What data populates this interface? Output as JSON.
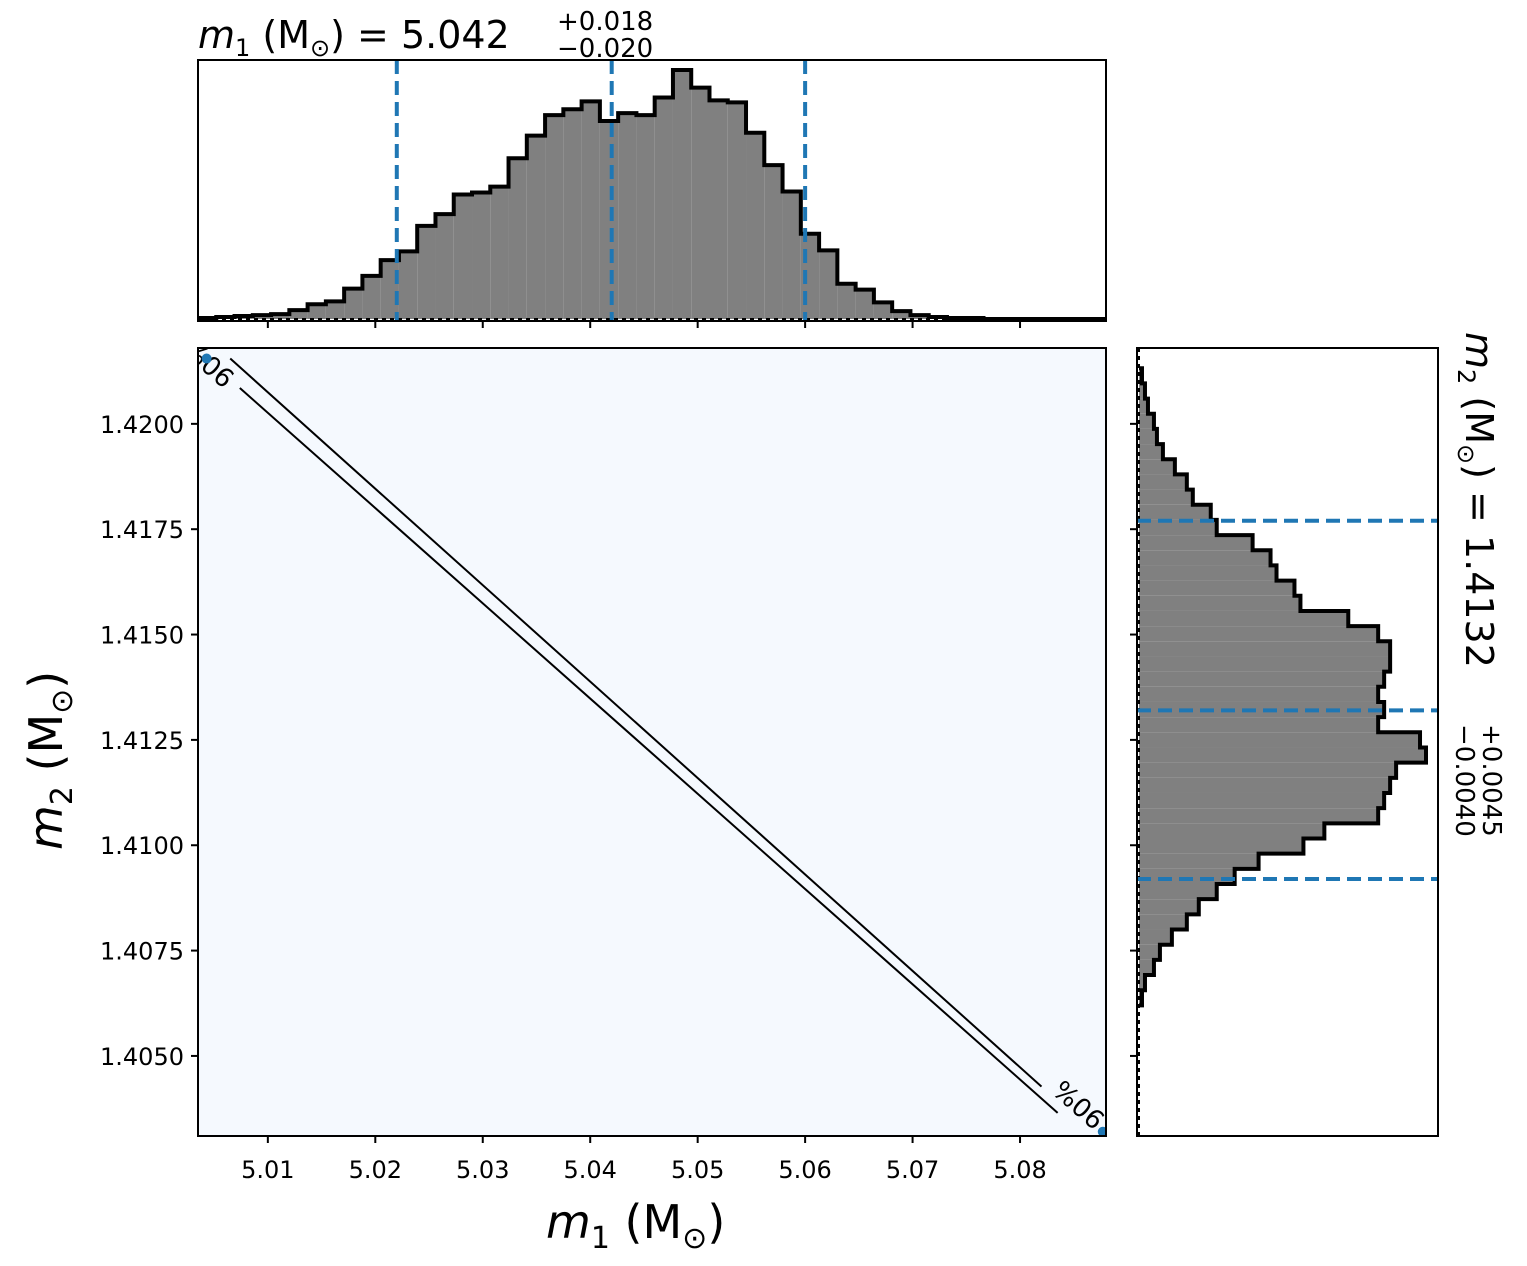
{
  "labels": {
    "top_title": {
      "sym": "m",
      "sub": "1",
      "unit_l": " (M",
      "sun": "⊙",
      "unit_r": ")",
      "eq": " = 5.042",
      "sup": "+0.018",
      "inf": "−0.020"
    },
    "right_title": {
      "sym": "m",
      "sub": "2",
      "unit_l": " (M",
      "sun": "⊙",
      "unit_r": ")",
      "eq": " = 1.4132",
      "sup": "+0.0045",
      "inf": "−0.0040"
    },
    "xlabel": {
      "sym": "m",
      "sub": "1",
      "unit_l": " (M",
      "sun": "⊙",
      "unit_r": ")"
    },
    "ylabel": {
      "sym": "m",
      "sub": "2",
      "unit_l": " (M",
      "sun": "⊙",
      "unit_r": ")"
    },
    "contour_label": "90%"
  },
  "chart_data": [
    {
      "type": "histogram",
      "panel": "top",
      "variable": "m1",
      "title": "m1 (M⊙) = 5.042 +0.018 −0.020",
      "xlim": [
        5.0035,
        5.088
      ],
      "xticks": [
        5.01,
        5.02,
        5.03,
        5.04,
        5.05,
        5.06,
        5.07,
        5.08
      ],
      "quantiles": [
        5.022,
        5.042,
        5.06
      ],
      "bin_width": 0.0017,
      "bin_centers": [
        5.00435,
        5.00605,
        5.00775,
        5.00945,
        5.01115,
        5.01285,
        5.01455,
        5.01625,
        5.01795,
        5.01965,
        5.02135,
        5.02305,
        5.02475,
        5.02645,
        5.02815,
        5.02985,
        5.03155,
        5.03325,
        5.03495,
        5.03665,
        5.03835,
        5.04005,
        5.04175,
        5.04345,
        5.04515,
        5.04685,
        5.04855,
        5.05025,
        5.05195,
        5.05365,
        5.05535,
        5.05705,
        5.05875,
        5.06045,
        5.06215,
        5.06385,
        5.06555,
        5.06725,
        5.06895,
        5.07065,
        5.07235,
        5.07405,
        5.07575,
        5.07745,
        5.07915,
        5.08085,
        5.08255,
        5.08425,
        5.08595,
        5.08765
      ],
      "counts": [
        1,
        2,
        3,
        4,
        5,
        9,
        15,
        18,
        31,
        44,
        60,
        69,
        95,
        107,
        127,
        129,
        135,
        164,
        187,
        208,
        214,
        222,
        202,
        210,
        208,
        226,
        254,
        236,
        223,
        221,
        190,
        157,
        130,
        87,
        70,
        36,
        30,
        17,
        8,
        4,
        2,
        1,
        1,
        0,
        0,
        0,
        0,
        0,
        0,
        0
      ]
    },
    {
      "type": "scatter",
      "panel": "main",
      "xlabel": "m1 (M⊙)",
      "ylabel": "m2 (M⊙)",
      "xlim": [
        5.0035,
        5.088
      ],
      "ylim": [
        1.4031,
        1.4218
      ],
      "xticks": [
        5.01,
        5.02,
        5.03,
        5.04,
        5.05,
        5.06,
        5.07,
        5.08
      ],
      "yticks": [
        1.405,
        1.4075,
        1.41,
        1.4125,
        1.415,
        1.4175,
        1.42
      ],
      "background": "#f5f9fe",
      "contour_level": "90%",
      "contour_lines": [
        {
          "x": [
            5.0043,
            5.0835
          ],
          "y": [
            1.42155,
            1.40365
          ]
        },
        {
          "x": [
            5.0065,
            5.0845
          ],
          "y": [
            1.42155,
            1.4037
          ]
        }
      ]
    },
    {
      "type": "histogram",
      "panel": "right",
      "orientation": "horizontal",
      "variable": "m2",
      "title": "m2 (M⊙) = 1.4132 +0.0045 −0.0040",
      "ylim": [
        1.4031,
        1.4218
      ],
      "quantiles": [
        1.4092,
        1.4132,
        1.4177
      ],
      "bin_width": 0.00036,
      "bin_centers": [
        1.40638,
        1.40674,
        1.4071,
        1.40746,
        1.40782,
        1.40818,
        1.40854,
        1.4089,
        1.40926,
        1.40962,
        1.40998,
        1.41034,
        1.4107,
        1.41106,
        1.41142,
        1.41178,
        1.41214,
        1.4125,
        1.41286,
        1.41322,
        1.41358,
        1.41394,
        1.4143,
        1.41466,
        1.41502,
        1.41538,
        1.41574,
        1.4161,
        1.41646,
        1.41682,
        1.41718,
        1.41754,
        1.4179,
        1.41826,
        1.41862,
        1.41898,
        1.41934,
        1.4197,
        1.42006,
        1.42042,
        1.42078,
        1.42114
      ],
      "counts": [
        1,
        2,
        5,
        7,
        11,
        16,
        20,
        26,
        32,
        40,
        55,
        62,
        80,
        82,
        84,
        86,
        96,
        94,
        80,
        82,
        80,
        82,
        84,
        84,
        80,
        70,
        54,
        52,
        46,
        44,
        38,
        26,
        24,
        18,
        16,
        12,
        8,
        6,
        5,
        3,
        2,
        1
      ]
    }
  ],
  "colors": {
    "hist_fill": "#808080",
    "hist_edge": "#000000",
    "quantile_line": "#1f77b4",
    "main_bg": "#f5f9fe",
    "contour": "#000000"
  }
}
